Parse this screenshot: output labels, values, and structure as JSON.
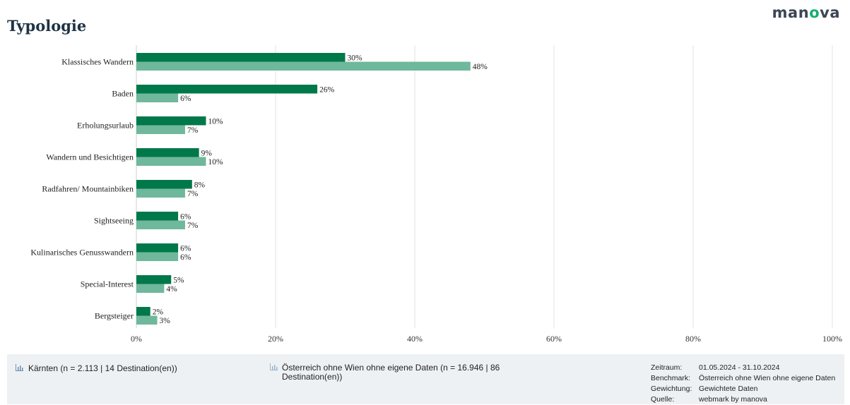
{
  "header": {
    "title": "Typologie",
    "brand_prefix": "man",
    "brand_accent": "o",
    "brand_suffix": "va"
  },
  "colors": {
    "series1": "#00784a",
    "series2": "#6fb89c",
    "grid": "#e3e3e3",
    "footer_bg": "#eef1f4",
    "brand_accent": "#12b06e"
  },
  "chart_data": {
    "type": "bar",
    "orientation": "horizontal",
    "categories": [
      "Klassisches Wandern",
      "Baden",
      "Erholungsurlaub",
      "Wandern und Besichtigen",
      "Radfahren/ Mountainbiken",
      "Sightseeing",
      "Kulinarisches Genusswandern",
      "Special-Interest",
      "Bergsteiger"
    ],
    "series": [
      {
        "name": "Kärnten (n = 2.113 | 14 Destination(en))",
        "values": [
          30,
          26,
          10,
          9,
          8,
          6,
          6,
          5,
          2
        ]
      },
      {
        "name": "Österreich ohne Wien ohne eigene Daten (n = 16.946 | 86 Destination(en))",
        "values": [
          48,
          6,
          7,
          10,
          7,
          7,
          6,
          4,
          3
        ]
      }
    ],
    "value_labels": [
      [
        "30%",
        "26%",
        "10%",
        "9%",
        "8%",
        "6%",
        "6%",
        "5%",
        "2%"
      ],
      [
        "48%",
        "6%",
        "7%",
        "10%",
        "7%",
        "7%",
        "6%",
        "4%",
        "3%"
      ]
    ],
    "xlim": [
      0,
      100
    ],
    "xticks": [
      0,
      20,
      40,
      60,
      80,
      100
    ],
    "xtick_labels": [
      "0%",
      "20%",
      "40%",
      "60%",
      "80%",
      "100%"
    ],
    "grid": true,
    "legend_position": "bottom"
  },
  "legend": {
    "item1": "Kärnten (n = 2.113 | 14 Destination(en))",
    "item2": "Österreich ohne Wien ohne eigene Daten (n = 16.946 | 86 Destination(en))"
  },
  "meta": {
    "zeitraum_key": "Zeitraum:",
    "zeitraum_val": "01.05.2024 - 31.10.2024",
    "benchmark_key": "Benchmark:",
    "benchmark_val": "Österreich ohne Wien ohne eigene Daten",
    "gewichtung_key": "Gewichtung:",
    "gewichtung_val": "Gewichtete Daten",
    "quelle_key": "Quelle:",
    "quelle_val": "webmark by manova"
  }
}
